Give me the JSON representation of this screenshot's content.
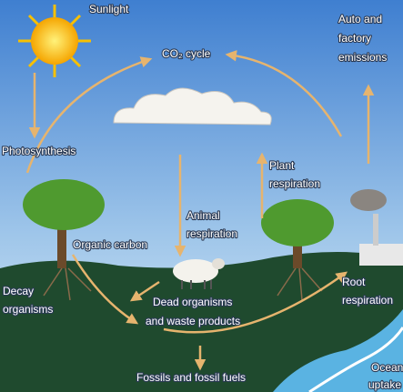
{
  "labels": {
    "sunlight": "Sunlight",
    "co2_cycle": "CO₂ cycle",
    "emissions": [
      "Auto and",
      "factory",
      "emissions"
    ],
    "photosynthesis": "Photosynthesis",
    "plant_respiration": [
      "Plant",
      "respiration"
    ],
    "animal_respiration": [
      "Animal",
      "respiration"
    ],
    "organic_carbon": "Organic carbon",
    "decay_organisms": [
      "Decay",
      "organisms"
    ],
    "dead_organisms": [
      "Dead organisms",
      "and waste products"
    ],
    "root_respiration": [
      "Root",
      "respiration"
    ],
    "fossils": "Fossils and fossil fuels",
    "ocean_uptake": [
      "Ocean",
      "uptake"
    ]
  }
}
